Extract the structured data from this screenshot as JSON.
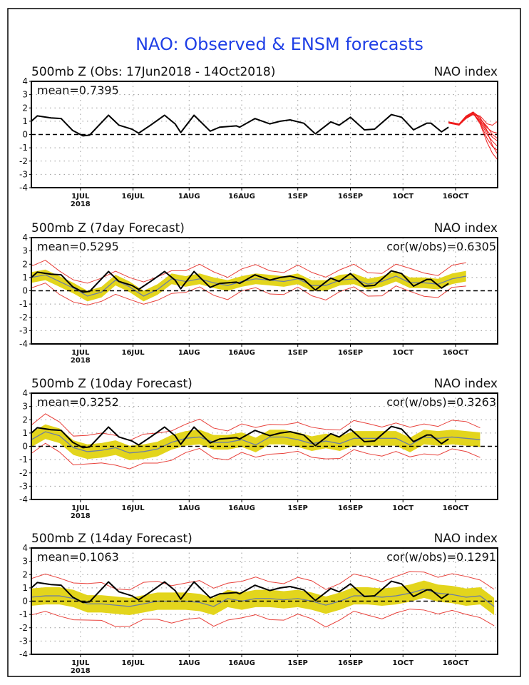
{
  "title": "NAO: Observed & ENSM forecasts",
  "colors": {
    "title": "#1f3fe6",
    "observed": "#000000",
    "ensemble_mean": "#6e7fa0",
    "spread_band": "#e3d51c",
    "envelope": "#e8403a",
    "members": "#ee1c1c"
  },
  "chart_data": [
    {
      "type": "line",
      "title": "500mb Z (Obs: 17Jun2018 - 14Oct2018)",
      "right_title": "NAO index",
      "annotation_left": "mean=0.7395",
      "ylim": [
        -4,
        4
      ],
      "yticks": [
        "4",
        "3",
        "2",
        "1",
        "0",
        "-1",
        "-2",
        "-3",
        "-4"
      ],
      "xlim_days": [
        0,
        133
      ],
      "xticks": [
        {
          "day": 14,
          "label": "1JUL",
          "sublabel": "2018"
        },
        {
          "day": 29,
          "label": "16JUL"
        },
        {
          "day": 45,
          "label": "1AUG"
        },
        {
          "day": 60,
          "label": "16AUG"
        },
        {
          "day": 76,
          "label": "1SEP"
        },
        {
          "day": 91,
          "label": "16SEP"
        },
        {
          "day": 106,
          "label": "1OCT"
        },
        {
          "day": 121,
          "label": "16OCT"
        }
      ],
      "grid": true,
      "observed": {
        "x": [
          0,
          1.7,
          5.6,
          8.5,
          11.8,
          14.7,
          16.6,
          22,
          25,
          28.7,
          30.6,
          34,
          38,
          41,
          42.6,
          46.4,
          51,
          53.7,
          58.5,
          59.4,
          63.8,
          68,
          71,
          73.8,
          77.7,
          81,
          85.4,
          87.8,
          91,
          95,
          97.9,
          102.7,
          105.6,
          109,
          112.8,
          114,
          117,
          119
        ],
        "y": [
          1.0,
          1.4,
          1.25,
          1.2,
          0.3,
          -0.1,
          -0.05,
          1.45,
          0.7,
          0.4,
          0.1,
          0.7,
          1.45,
          0.8,
          0.15,
          1.45,
          0.25,
          0.55,
          0.65,
          0.55,
          1.2,
          0.8,
          1.0,
          1.1,
          0.85,
          0.05,
          0.95,
          0.7,
          1.3,
          0.35,
          0.4,
          1.5,
          1.3,
          0.35,
          0.85,
          0.85,
          0.2,
          0.55
        ]
      },
      "members": {
        "x": [
          119,
          122,
          124,
          126,
          128,
          130,
          131.5,
          133
        ],
        "series": [
          [
            0.9,
            0.75,
            1.3,
            1.5,
            1.4,
            0.8,
            0.7,
            1.0
          ],
          [
            0.9,
            0.7,
            1.2,
            1.6,
            1.2,
            0.5,
            0.2,
            0.1
          ],
          [
            0.95,
            0.8,
            1.3,
            1.7,
            1.3,
            0.3,
            -0.2,
            -0.5
          ],
          [
            0.9,
            0.75,
            1.25,
            1.55,
            1.0,
            0.0,
            -0.5,
            -0.9
          ],
          [
            0.85,
            0.7,
            1.35,
            1.65,
            0.9,
            -0.3,
            -0.9,
            -1.2
          ],
          [
            0.9,
            0.8,
            1.3,
            1.6,
            0.8,
            -0.6,
            -1.4,
            -1.9
          ],
          [
            0.9,
            0.75,
            1.2,
            1.5,
            1.1,
            0.2,
            -0.8,
            -1.5
          ],
          [
            0.95,
            0.8,
            1.4,
            1.7,
            1.2,
            0.6,
            0.0,
            -0.3
          ]
        ]
      }
    },
    {
      "type": "line",
      "title": "500mb Z (7day Forecast)",
      "right_title": "NAO index",
      "annotation_left": "mean=0.5295",
      "annotation_right": "cor(w/obs)=0.6305",
      "ylim": [
        -4,
        4
      ],
      "forecast_days": [
        0,
        4,
        8,
        12,
        16,
        20,
        24,
        28,
        32,
        36,
        40,
        44,
        48,
        52,
        56,
        60,
        64,
        68,
        72,
        76,
        80,
        84,
        88,
        92,
        96,
        100,
        104,
        108,
        112,
        116,
        120,
        124
      ],
      "ensemble_mean": [
        1.0,
        1.2,
        0.7,
        0.2,
        -0.4,
        -0.1,
        0.8,
        0.3,
        -0.4,
        0.1,
        0.9,
        0.7,
        0.9,
        0.6,
        0.4,
        0.7,
        0.9,
        0.8,
        0.7,
        0.9,
        0.4,
        0.4,
        0.8,
        0.9,
        0.5,
        0.7,
        1.1,
        0.6,
        0.6,
        0.5,
        0.9,
        1.1
      ],
      "band_halfwidth": 0.4,
      "envelope_halfwidth": 0.85
    },
    {
      "type": "line",
      "title": "500mb Z (10day Forecast)",
      "right_title": "NAO index",
      "annotation_left": "mean=0.3252",
      "annotation_right": "cor(w/obs)=0.3263",
      "ylim": [
        -4,
        4
      ],
      "forecast_days": [
        0,
        4,
        8,
        12,
        16,
        20,
        24,
        28,
        32,
        36,
        40,
        44,
        48,
        52,
        56,
        60,
        64,
        68,
        72,
        76,
        80,
        84,
        88,
        92,
        96,
        100,
        104,
        108,
        112,
        116,
        120,
        124,
        128
      ],
      "ensemble_mean": [
        0.5,
        1.1,
        0.8,
        -0.1,
        -0.4,
        -0.3,
        -0.1,
        -0.5,
        -0.4,
        -0.2,
        0.3,
        0.6,
        0.7,
        0.3,
        0.3,
        0.5,
        0.1,
        0.7,
        0.7,
        0.5,
        0.2,
        0.4,
        0.2,
        0.6,
        0.6,
        0.6,
        0.6,
        0.1,
        0.7,
        0.6,
        0.7,
        0.6,
        0.5
      ],
      "band_halfwidth": 0.55,
      "envelope_halfwidth": 1.1
    },
    {
      "type": "line",
      "title": "500mb Z (14day Forecast)",
      "right_title": "NAO index",
      "annotation_left": "mean=0.1063",
      "annotation_right": "cor(w/obs)=0.1291",
      "ylim": [
        -4,
        4
      ],
      "forecast_days": [
        0,
        4,
        8,
        12,
        16,
        20,
        24,
        28,
        32,
        36,
        40,
        44,
        48,
        52,
        56,
        60,
        64,
        68,
        72,
        76,
        80,
        84,
        88,
        92,
        96,
        100,
        104,
        108,
        112,
        116,
        120,
        124,
        128,
        132
      ],
      "ensemble_mean": [
        0.3,
        0.4,
        0.4,
        0.2,
        -0.2,
        -0.2,
        -0.3,
        -0.4,
        -0.2,
        0.0,
        0.0,
        0.0,
        -0.1,
        -0.4,
        0.2,
        0.0,
        0.2,
        0.2,
        0.1,
        0.2,
        0.0,
        -0.3,
        0.0,
        0.4,
        0.4,
        0.3,
        0.4,
        0.6,
        0.9,
        0.6,
        0.5,
        0.3,
        0.4,
        -0.4
      ],
      "band_halfwidth": 0.65,
      "envelope_halfwidth": 1.4
    }
  ]
}
